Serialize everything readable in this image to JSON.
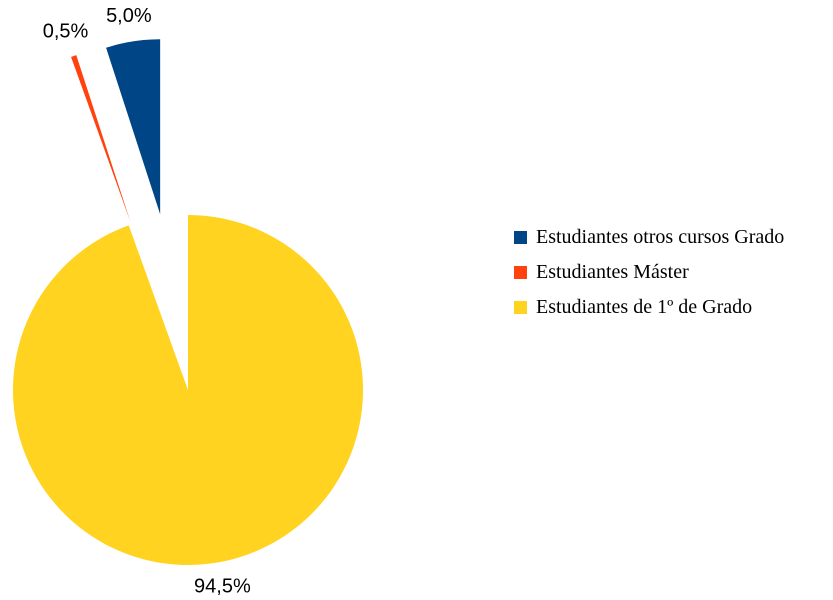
{
  "chart_data": {
    "type": "pie",
    "categories": [
      "Estudiantes otros cursos Grado",
      "Estudiantes Máster",
      "Estudiantes de 1º de Grado"
    ],
    "values": [
      5.0,
      0.5,
      94.5
    ],
    "value_labels": [
      "5,0%",
      "0,5%",
      "94,5%"
    ],
    "colors": [
      "#004586",
      "#ff420e",
      "#ffd320"
    ],
    "legend": "right"
  }
}
